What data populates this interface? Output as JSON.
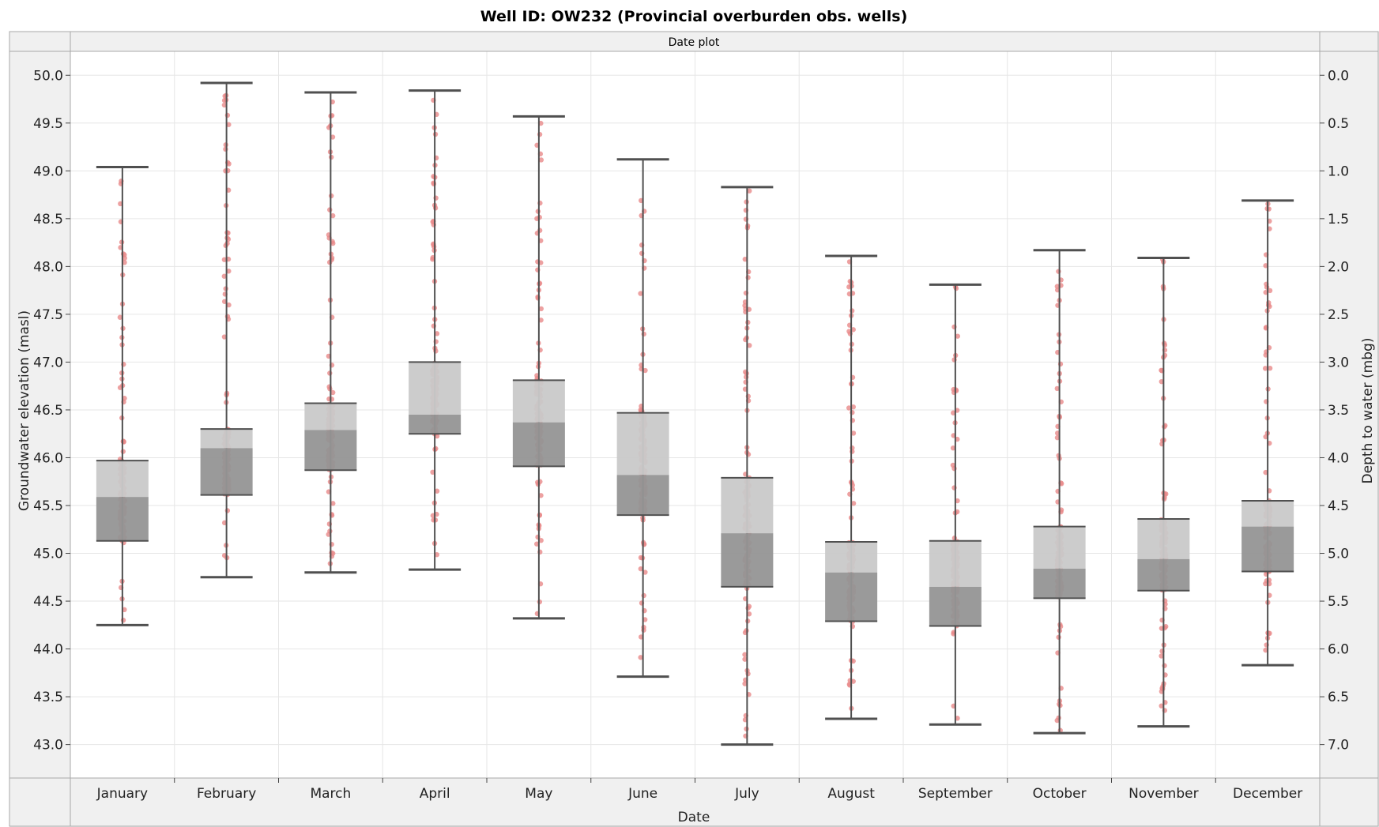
{
  "chart_data": {
    "type": "box",
    "title": "Well ID: OW232 (Provincial overburden obs. wells)",
    "strip_label": "Date plot",
    "xlabel": "Date",
    "ylabel": "Groundwater elevation (masl)",
    "y2label": "Depth to water (mbg)",
    "ylim": [
      42.65,
      50.25
    ],
    "y_ticks": [
      "50.0",
      "49.5",
      "49.0",
      "48.5",
      "48.0",
      "47.5",
      "47.0",
      "46.5",
      "46.0",
      "45.5",
      "45.0",
      "44.5",
      "44.0",
      "43.5",
      "43.0"
    ],
    "y2_ticks": [
      "0.0",
      "0.5",
      "1.0",
      "1.5",
      "2.0",
      "2.5",
      "3.0",
      "3.5",
      "4.0",
      "4.5",
      "5.0",
      "5.5",
      "6.0",
      "6.5",
      "7.0"
    ],
    "grid": true,
    "colors": {
      "upper_box": "#c9c9c9",
      "lower_box": "#959595",
      "box_line": "#505050",
      "points": "#e88a8a",
      "panel_bg": "#f0f0f0",
      "grid": "#e6e6e6"
    },
    "categories": [
      "January",
      "February",
      "March",
      "April",
      "May",
      "June",
      "July",
      "August",
      "September",
      "October",
      "November",
      "December"
    ],
    "boxes": [
      {
        "whisker_low": 44.25,
        "q1": 45.13,
        "median": 45.59,
        "q3": 45.97,
        "whisker_high": 49.04
      },
      {
        "whisker_low": 44.75,
        "q1": 45.61,
        "median": 46.1,
        "q3": 46.3,
        "whisker_high": 49.92
      },
      {
        "whisker_low": 44.8,
        "q1": 45.87,
        "median": 46.29,
        "q3": 46.57,
        "whisker_high": 49.82
      },
      {
        "whisker_low": 44.83,
        "q1": 46.25,
        "median": 46.45,
        "q3": 47.0,
        "whisker_high": 49.84
      },
      {
        "whisker_low": 44.32,
        "q1": 45.91,
        "median": 46.37,
        "q3": 46.81,
        "whisker_high": 49.57
      },
      {
        "whisker_low": 43.71,
        "q1": 45.4,
        "median": 45.82,
        "q3": 46.47,
        "whisker_high": 49.12
      },
      {
        "whisker_low": 43.0,
        "q1": 44.65,
        "median": 45.21,
        "q3": 45.79,
        "whisker_high": 48.83
      },
      {
        "whisker_low": 43.27,
        "q1": 44.29,
        "median": 44.8,
        "q3": 45.12,
        "whisker_high": 48.11
      },
      {
        "whisker_low": 43.21,
        "q1": 44.24,
        "median": 44.65,
        "q3": 45.13,
        "whisker_high": 47.81
      },
      {
        "whisker_low": 43.12,
        "q1": 44.53,
        "median": 44.84,
        "q3": 45.28,
        "whisker_high": 48.17
      },
      {
        "whisker_low": 43.19,
        "q1": 44.61,
        "median": 44.94,
        "q3": 45.36,
        "whisker_high": 48.09
      },
      {
        "whisker_low": 43.83,
        "q1": 44.81,
        "median": 45.28,
        "q3": 45.55,
        "whisker_high": 48.69
      }
    ]
  }
}
